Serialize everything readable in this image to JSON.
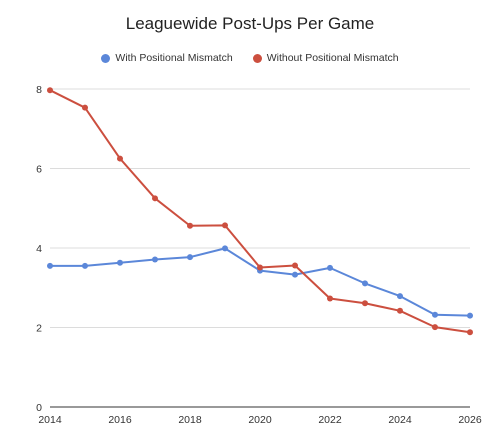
{
  "chart_data": {
    "type": "line",
    "title": "Leaguewide Post-Ups Per Game",
    "xlabel": "",
    "ylabel": "",
    "xlim": [
      2014,
      2026
    ],
    "ylim": [
      0,
      8
    ],
    "x_ticks": [
      "2014",
      "2016",
      "2018",
      "2020",
      "2022",
      "2024",
      "2026"
    ],
    "y_ticks": [
      "0",
      "2",
      "4",
      "6",
      "8"
    ],
    "grid": true,
    "legend_position": "top",
    "x": [
      2014,
      2015,
      2016,
      2017,
      2018,
      2019,
      2020,
      2021,
      2022,
      2023,
      2024,
      2025,
      2026
    ],
    "series": [
      {
        "name": "With Positional Mismatch",
        "color": "#5b87d9",
        "values": [
          3.55,
          3.55,
          3.63,
          3.71,
          3.77,
          3.99,
          3.43,
          3.33,
          3.5,
          3.11,
          2.79,
          2.32,
          2.3
        ]
      },
      {
        "name": "Without Positional Mismatch",
        "color": "#cc4f3f",
        "values": [
          7.97,
          7.53,
          6.25,
          5.25,
          4.56,
          4.57,
          3.51,
          3.56,
          2.73,
          2.61,
          2.42,
          2.01,
          1.88
        ]
      }
    ]
  }
}
